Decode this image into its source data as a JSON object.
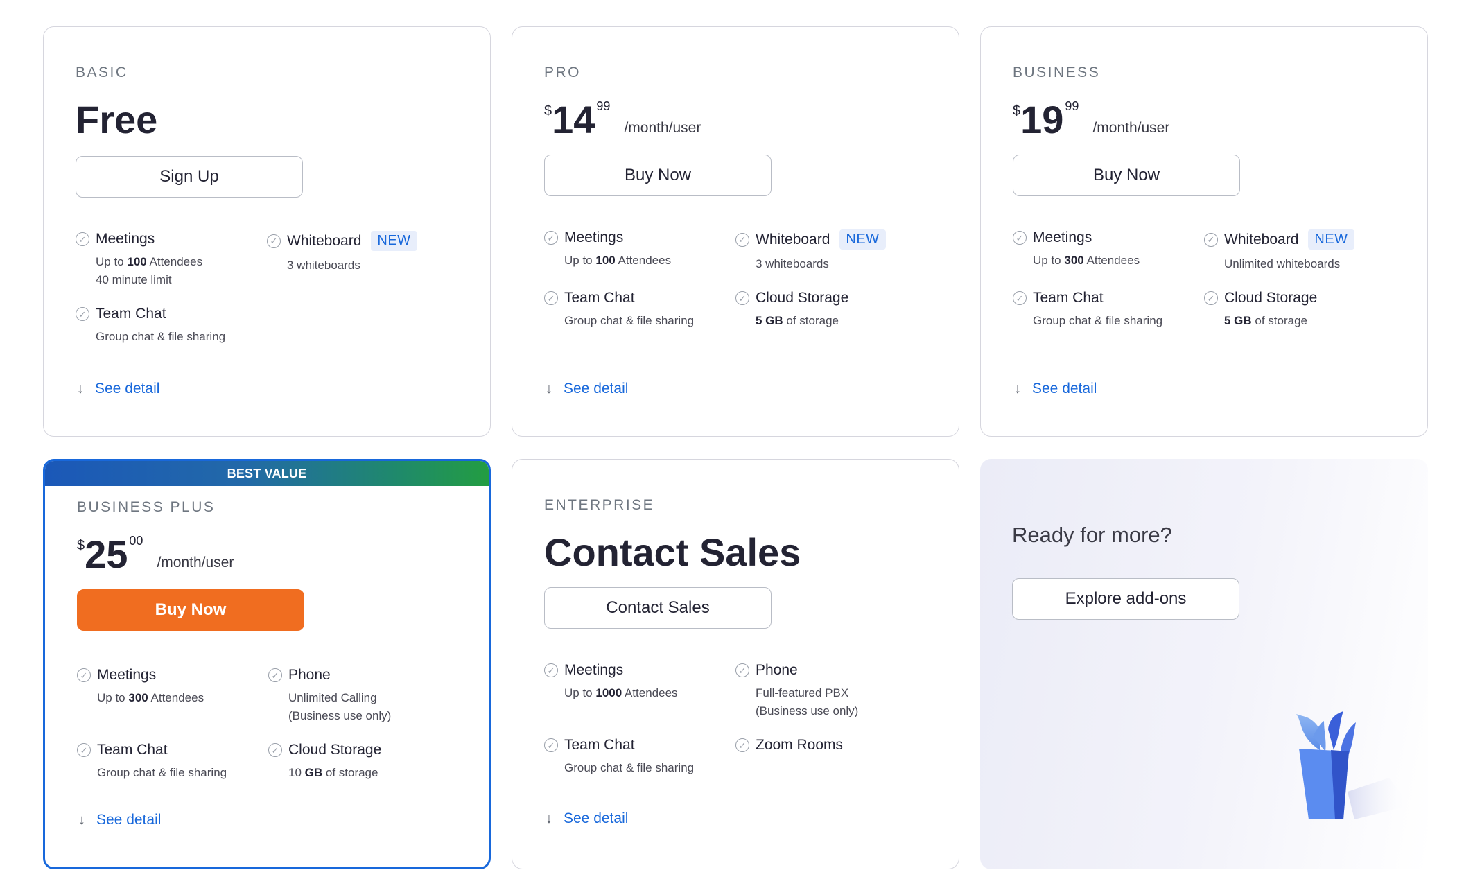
{
  "plans": [
    {
      "tier": "BASIC",
      "price_text": "Free",
      "button": "Sign Up",
      "features": [
        {
          "name": "Meetings",
          "desc": [
            [
              "Up to ",
              "100",
              " Attendees"
            ],
            [
              "40 minute limit"
            ]
          ]
        },
        {
          "name": "Whiteboard",
          "badge": "NEW",
          "desc": [
            [
              "3 whiteboards"
            ]
          ]
        },
        {
          "name": "Team Chat",
          "desc": [
            [
              "Group chat & file sharing"
            ]
          ]
        }
      ],
      "see_detail": "See detail"
    },
    {
      "tier": "PRO",
      "currency": "$",
      "price_int": "14",
      "price_cents": "99",
      "per": "/month/user",
      "button": "Buy Now",
      "features": [
        {
          "name": "Meetings",
          "desc": [
            [
              "Up to ",
              "100",
              " Attendees"
            ]
          ]
        },
        {
          "name": "Whiteboard",
          "badge": "NEW",
          "desc": [
            [
              "3 whiteboards"
            ]
          ]
        },
        {
          "name": "Team Chat",
          "desc": [
            [
              "Group chat & file sharing"
            ]
          ]
        },
        {
          "name": "Cloud Storage",
          "desc": [
            [
              "",
              "5 GB",
              " of storage"
            ]
          ]
        }
      ],
      "see_detail": "See detail"
    },
    {
      "tier": "BUSINESS",
      "currency": "$",
      "price_int": "19",
      "price_cents": "99",
      "per": "/month/user",
      "button": "Buy Now",
      "features": [
        {
          "name": "Meetings",
          "desc": [
            [
              "Up to ",
              "300",
              " Attendees"
            ]
          ]
        },
        {
          "name": "Whiteboard",
          "badge": "NEW",
          "desc": [
            [
              "Unlimited whiteboards"
            ]
          ]
        },
        {
          "name": "Team Chat",
          "desc": [
            [
              "Group chat & file sharing"
            ]
          ]
        },
        {
          "name": "Cloud Storage",
          "desc": [
            [
              "",
              "5 GB",
              " of storage"
            ]
          ]
        }
      ],
      "see_detail": "See detail"
    },
    {
      "ribbon": "BEST VALUE",
      "tier": "BUSINESS PLUS",
      "currency": "$",
      "price_int": "25",
      "price_cents": "00",
      "per": "/month/user",
      "button": "Buy Now",
      "features": [
        {
          "name": "Meetings",
          "desc": [
            [
              "Up to ",
              "300",
              " Attendees"
            ]
          ]
        },
        {
          "name": "Phone",
          "desc": [
            [
              "Unlimited Calling"
            ],
            [
              "(Business use only)"
            ]
          ]
        },
        {
          "name": "Team Chat",
          "desc": [
            [
              "Group chat & file sharing"
            ]
          ]
        },
        {
          "name": "Cloud Storage",
          "desc": [
            [
              "10 ",
              "GB",
              " of storage"
            ]
          ]
        }
      ],
      "see_detail": "See detail"
    },
    {
      "tier": "ENTERPRISE",
      "price_text": "Contact Sales",
      "button": "Contact Sales",
      "features": [
        {
          "name": "Meetings",
          "desc": [
            [
              "Up to ",
              "1000",
              " Attendees"
            ]
          ]
        },
        {
          "name": "Phone",
          "desc": [
            [
              "Full-featured PBX"
            ],
            [
              "(Business use only)"
            ]
          ]
        },
        {
          "name": "Team Chat",
          "desc": [
            [
              "Group chat & file sharing"
            ]
          ]
        },
        {
          "name": "Zoom Rooms",
          "desc": []
        }
      ],
      "see_detail": "See detail"
    }
  ],
  "addons": {
    "title": "Ready for more?",
    "button": "Explore add-ons",
    "icon": "plant-pot-illustration"
  },
  "colors": {
    "accent_blue": "#1868db",
    "buy_orange": "#f06d20",
    "ribbon_start": "#1b58b8",
    "ribbon_end": "#239d42"
  }
}
